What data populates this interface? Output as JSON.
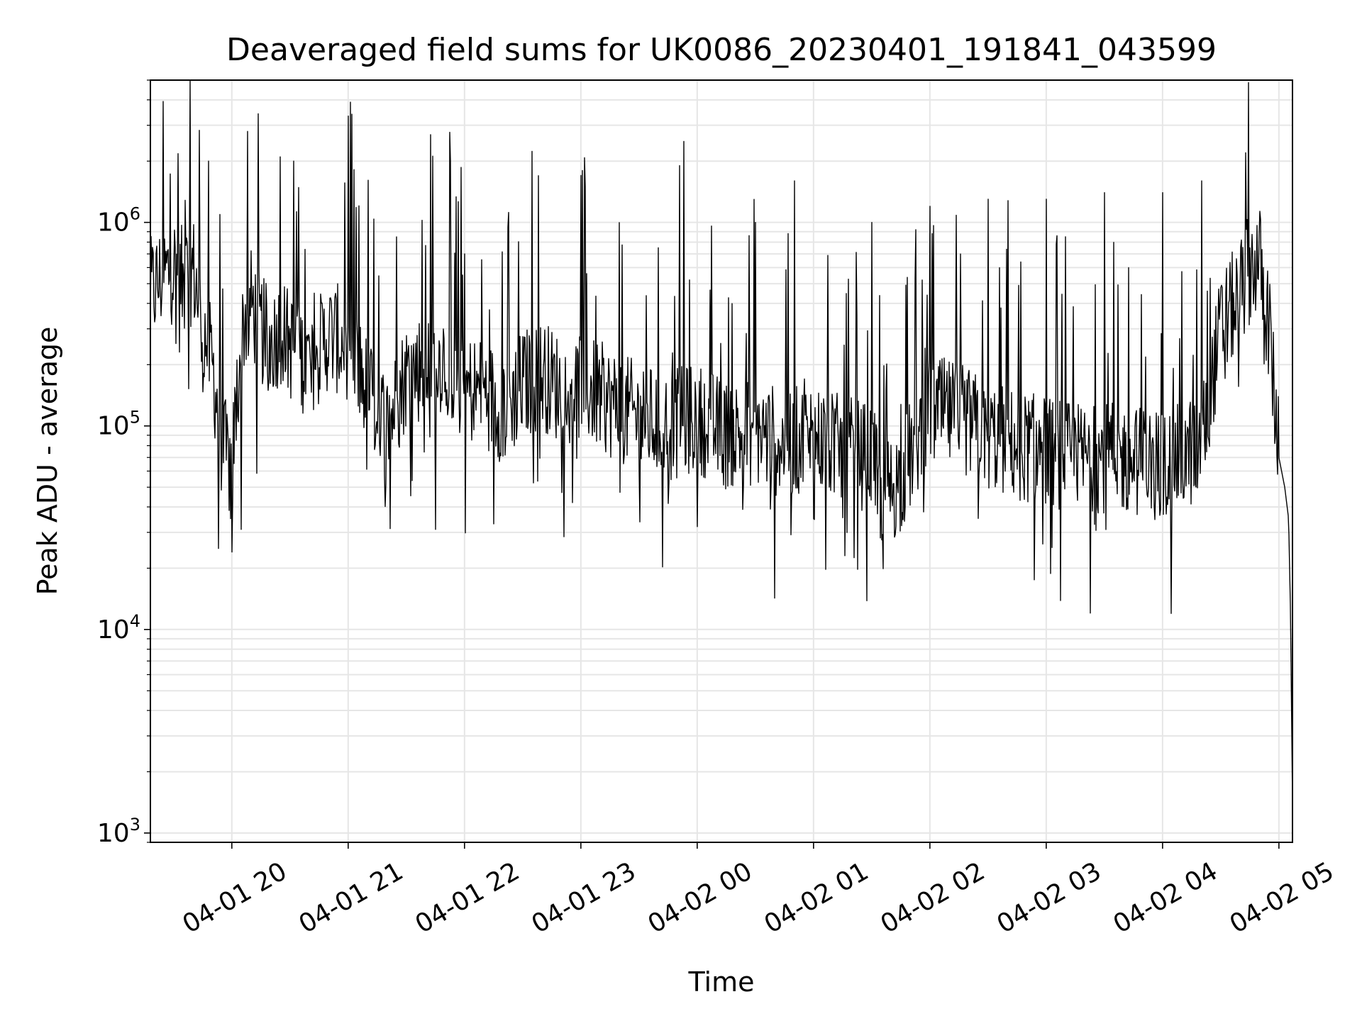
{
  "chart_data": {
    "type": "line",
    "title": "Deaveraged field sums for UK0086_20230401_191841_043599",
    "xlabel": "Time",
    "ylabel": "Peak ADU - average",
    "y_scale": "log",
    "ylim": [
      900,
      5000000
    ],
    "xlim": [
      "2023-04-01 19:18",
      "2023-04-02 05:07"
    ],
    "grid": true,
    "line_color": "#000000",
    "grid_color": "#e6e6e6",
    "x_ticks": [
      {
        "t": "2023-04-01 20:00",
        "label": "04-01 20"
      },
      {
        "t": "2023-04-01 21:00",
        "label": "04-01 21"
      },
      {
        "t": "2023-04-01 22:00",
        "label": "04-01 22"
      },
      {
        "t": "2023-04-01 23:00",
        "label": "04-01 23"
      },
      {
        "t": "2023-04-02 00:00",
        "label": "04-02 00"
      },
      {
        "t": "2023-04-02 01:00",
        "label": "04-02 01"
      },
      {
        "t": "2023-04-02 02:00",
        "label": "04-02 02"
      },
      {
        "t": "2023-04-02 03:00",
        "label": "04-02 03"
      },
      {
        "t": "2023-04-02 04:00",
        "label": "04-02 04"
      },
      {
        "t": "2023-04-02 05:00",
        "label": "04-02 05"
      }
    ],
    "y_ticks": [
      {
        "value": 1000,
        "base": "10",
        "exp": "3"
      },
      {
        "value": 10000,
        "base": "10",
        "exp": "4"
      },
      {
        "value": 100000,
        "base": "10",
        "exp": "5"
      },
      {
        "value": 1000000,
        "base": "10",
        "exp": "6"
      }
    ],
    "series": [
      {
        "x": [
          "2023-04-01 19:18",
          "2023-04-01 19:25",
          "2023-04-01 19:30",
          "2023-04-01 19:35",
          "2023-04-01 19:40",
          "2023-04-01 19:45",
          "2023-04-01 19:50",
          "2023-04-01 19:55",
          "2023-04-01 20:00",
          "2023-04-01 20:05",
          "2023-04-01 20:10",
          "2023-04-01 20:15",
          "2023-04-01 20:20",
          "2023-04-01 20:25",
          "2023-04-01 20:30",
          "2023-04-01 20:40",
          "2023-04-01 20:50",
          "2023-04-01 21:00",
          "2023-04-01 21:10",
          "2023-04-01 21:20",
          "2023-04-01 21:30",
          "2023-04-01 21:40",
          "2023-04-01 21:50",
          "2023-04-01 22:00",
          "2023-04-01 22:10",
          "2023-04-01 22:20",
          "2023-04-01 22:30",
          "2023-04-01 22:40",
          "2023-04-01 22:50",
          "2023-04-01 23:00",
          "2023-04-01 23:15",
          "2023-04-01 23:30",
          "2023-04-01 23:45",
          "2023-04-02 00:00",
          "2023-04-02 00:15",
          "2023-04-02 00:30",
          "2023-04-02 00:45",
          "2023-04-02 01:00",
          "2023-04-02 01:15",
          "2023-04-02 01:30",
          "2023-04-02 01:35",
          "2023-04-02 01:45",
          "2023-04-02 02:00",
          "2023-04-02 02:15",
          "2023-04-02 02:30",
          "2023-04-02 02:45",
          "2023-04-02 03:00",
          "2023-04-02 03:15",
          "2023-04-02 03:30",
          "2023-04-02 03:45",
          "2023-04-02 04:00",
          "2023-04-02 04:10",
          "2023-04-02 04:20",
          "2023-04-02 04:30",
          "2023-04-02 04:40",
          "2023-04-02 04:45",
          "2023-04-02 04:50",
          "2023-04-02 04:55",
          "2023-04-02 05:00",
          "2023-04-02 05:03",
          "2023-04-02 05:05",
          "2023-04-02 05:06",
          "2023-04-02 05:07"
        ],
        "values": [
          450000,
          550000,
          600000,
          500000,
          600000,
          300000,
          200000,
          80000,
          60000,
          300000,
          400000,
          300000,
          250000,
          300000,
          250000,
          200000,
          280000,
          250000,
          150000,
          100000,
          180000,
          200000,
          220000,
          150000,
          150000,
          120000,
          160000,
          180000,
          150000,
          160000,
          130000,
          110000,
          100000,
          110000,
          90000,
          95000,
          80000,
          90000,
          75000,
          70000,
          45000,
          55000,
          120000,
          110000,
          90000,
          80000,
          75000,
          70000,
          70000,
          68000,
          65000,
          70000,
          80000,
          300000,
          450000,
          600000,
          650000,
          300000,
          70000,
          50000,
          35000,
          12000,
          1400
        ],
        "peaks": [
          {
            "t": "2023-04-01 19:48",
            "value": 2000000
          },
          {
            "t": "2023-04-01 20:08",
            "value": 2800000
          },
          {
            "t": "2023-04-01 20:25",
            "value": 2100000
          },
          {
            "t": "2023-04-01 20:32",
            "value": 2000000
          },
          {
            "t": "2023-04-01 21:02",
            "value": 3400000
          },
          {
            "t": "2023-04-01 22:00",
            "value": 700000
          },
          {
            "t": "2023-04-01 23:00",
            "value": 1700000
          },
          {
            "t": "2023-04-01 23:53",
            "value": 2500000
          },
          {
            "t": "2023-04-01 23:51",
            "value": 1900000
          },
          {
            "t": "2023-04-02 00:30",
            "value": 1000000
          },
          {
            "t": "2023-04-02 00:50",
            "value": 1600000
          },
          {
            "t": "2023-04-02 01:30",
            "value": 1000000
          },
          {
            "t": "2023-04-02 02:00",
            "value": 1200000
          },
          {
            "t": "2023-04-02 02:30",
            "value": 1300000
          },
          {
            "t": "2023-04-02 03:00",
            "value": 1300000
          },
          {
            "t": "2023-04-02 03:30",
            "value": 1400000
          },
          {
            "t": "2023-04-02 04:00",
            "value": 1400000
          },
          {
            "t": "2023-04-02 04:20",
            "value": 1600000
          },
          {
            "t": "2023-04-02 04:43",
            "value": 2200000
          }
        ],
        "troughs": [
          {
            "t": "2023-04-01 19:53",
            "value": 25000
          },
          {
            "t": "2023-04-01 20:00",
            "value": 24000
          },
          {
            "t": "2023-04-01 20:05",
            "value": 31000
          },
          {
            "t": "2023-04-01 21:45",
            "value": 31000
          },
          {
            "t": "2023-04-01 22:15",
            "value": 33000
          },
          {
            "t": "2023-04-02 00:00",
            "value": 32000
          },
          {
            "t": "2023-04-02 01:00",
            "value": 35000
          },
          {
            "t": "2023-04-02 01:33",
            "value": 37000
          }
        ]
      }
    ]
  }
}
